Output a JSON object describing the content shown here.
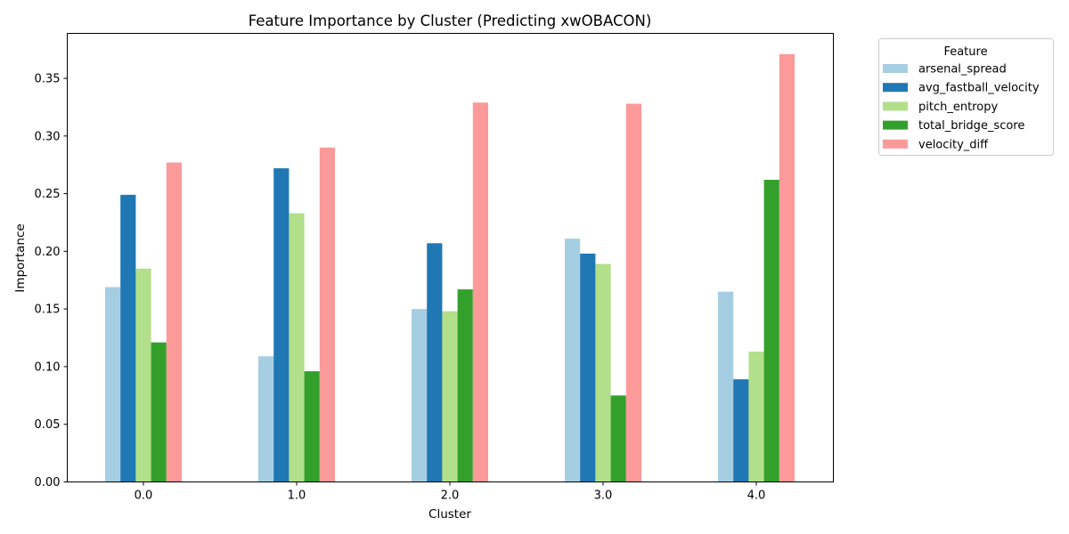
{
  "chart_data": {
    "type": "bar",
    "title": "Feature Importance by Cluster (Predicting xwOBACON)",
    "xlabel": "Cluster",
    "ylabel": "Importance",
    "categories": [
      "0.0",
      "1.0",
      "2.0",
      "3.0",
      "4.0"
    ],
    "ylim": [
      0,
      0.389
    ],
    "yticks": [
      "0.00",
      "0.05",
      "0.10",
      "0.15",
      "0.20",
      "0.25",
      "0.30",
      "0.35"
    ],
    "grid": false,
    "legend": {
      "title": "Feature",
      "placement": "outside-top-right"
    },
    "series": [
      {
        "name": "arsenal_spread",
        "color": "#a6cee3",
        "values": [
          0.169,
          0.109,
          0.15,
          0.211,
          0.165
        ]
      },
      {
        "name": "avg_fastball_velocity",
        "color": "#1f78b4",
        "values": [
          0.249,
          0.272,
          0.207,
          0.198,
          0.089
        ]
      },
      {
        "name": "pitch_entropy",
        "color": "#b2df8a",
        "values": [
          0.185,
          0.233,
          0.148,
          0.189,
          0.113
        ]
      },
      {
        "name": "total_bridge_score",
        "color": "#33a02c",
        "values": [
          0.121,
          0.096,
          0.167,
          0.075,
          0.262
        ]
      },
      {
        "name": "velocity_diff",
        "color": "#fb9a99",
        "values": [
          0.277,
          0.29,
          0.329,
          0.328,
          0.371
        ]
      }
    ]
  }
}
